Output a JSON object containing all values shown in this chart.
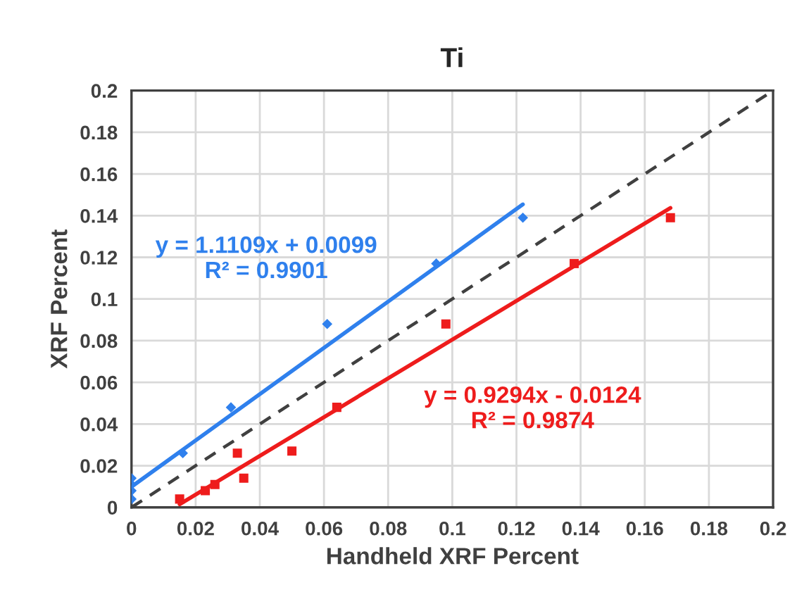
{
  "chart_data": {
    "type": "scatter",
    "title": "Ti",
    "xlabel": "Handheld XRF Percent",
    "ylabel": "XRF Percent",
    "xlim": [
      0,
      0.2
    ],
    "ylim": [
      0,
      0.2
    ],
    "xticks": [
      0,
      0.02,
      0.04,
      0.06,
      0.08,
      0.1,
      0.12,
      0.14,
      0.16,
      0.18,
      0.2
    ],
    "yticks": [
      0,
      0.02,
      0.04,
      0.06,
      0.08,
      0.1,
      0.12,
      0.14,
      0.16,
      0.18,
      0.2
    ],
    "grid": true,
    "series": [
      {
        "color": "#2f80ed",
        "marker": "diamond",
        "x": [
          0,
          0,
          0,
          0,
          0.016,
          0.031,
          0.061,
          0.095,
          0.122
        ],
        "values": [
          0.004,
          0.008,
          0.011,
          0.014,
          0.026,
          0.048,
          0.088,
          0.117,
          0.139
        ]
      },
      {
        "color": "#ee1c1c",
        "marker": "square",
        "x": [
          0.015,
          0.023,
          0.026,
          0.033,
          0.035,
          0.05,
          0.064,
          0.098,
          0.138,
          0.168
        ],
        "values": [
          0.004,
          0.008,
          0.011,
          0.026,
          0.014,
          0.027,
          0.048,
          0.088,
          0.117,
          0.139
        ]
      },
      {
        "type": "line",
        "color": "#2f80ed",
        "line_style": "solid",
        "x": [
          0,
          0.122
        ],
        "values": [
          0.0099,
          0.1454
        ]
      },
      {
        "type": "line",
        "color": "#ee1c1c",
        "line_style": "solid",
        "x": [
          0.015,
          0.168
        ],
        "values": [
          0.0015,
          0.1437
        ]
      },
      {
        "type": "line",
        "color": "#404040",
        "line_style": "dashed",
        "x": [
          0,
          0.2
        ],
        "values": [
          0,
          0.2
        ]
      }
    ],
    "annotations": [
      "y = 1.1109x + 0.0099\nR² = 0.9901",
      "y = 0.9294x - 0.0124\nR² = 0.9874"
    ]
  }
}
